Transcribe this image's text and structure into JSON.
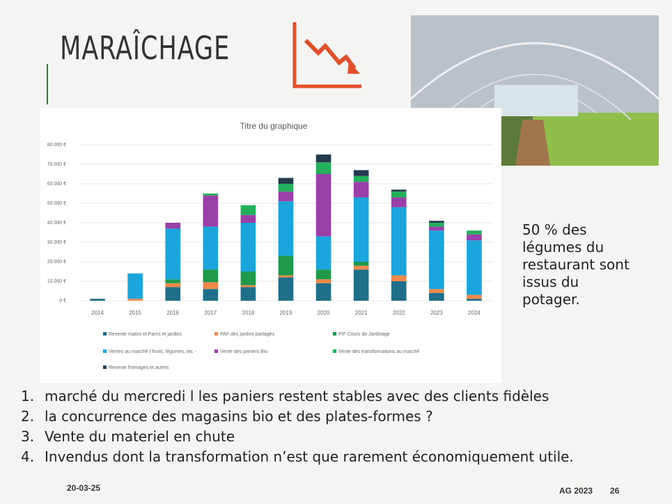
{
  "title": "MARAÎCHAGE",
  "side_note": "50 % des légumes du restaurant sont issus du potager.",
  "points": [
    {
      "number": "1.",
      "text": "marché du mercredi l les paniers restent stables avec des clients fidèles"
    },
    {
      "number": "2.",
      "text": "la concurrence des magasins bio et des plates-formes ?"
    },
    {
      "number": "3.",
      "text": "Vente du materiel en chute"
    },
    {
      "number": "4.",
      "text": "Invendus dont la transformation n’est que rarement économiquement utile."
    }
  ],
  "footer": {
    "date": "20-03-25",
    "event": "AG 2023",
    "page": "26"
  },
  "chart_data": {
    "type": "stacked-bar",
    "title": "Titre du graphique",
    "categories": [
      "2014",
      "2015",
      "2016",
      "2017",
      "2018",
      "2019",
      "2020",
      "2021",
      "2022",
      "2023",
      "2024"
    ],
    "ylim": [
      0,
      80000
    ],
    "yticks": [
      {
        "value": 0,
        "label": "0 €"
      },
      {
        "value": 10000,
        "label": "10.000 €"
      },
      {
        "value": 20000,
        "label": "20.000 €"
      },
      {
        "value": 30000,
        "label": "30.000 €"
      },
      {
        "value": 40000,
        "label": "40.000 €"
      },
      {
        "value": 50000,
        "label": "50.000 €"
      },
      {
        "value": 60000,
        "label": "60.000 €"
      },
      {
        "value": 70000,
        "label": "70.000 €"
      },
      {
        "value": 80000,
        "label": "80.000 €"
      }
    ],
    "grid": true,
    "series": [
      {
        "name": "Revente matos et Parcs et jardins",
        "color": "#1f6f8b",
        "values": [
          1000,
          0,
          7000,
          6000,
          7000,
          12000,
          9000,
          16000,
          10000,
          4000,
          1000
        ]
      },
      {
        "name": "PAF des jardins partagés",
        "color": "#f08a4b",
        "values": [
          0,
          1000,
          2000,
          3500,
          1000,
          1000,
          2000,
          2000,
          3000,
          2000,
          2000
        ]
      },
      {
        "name": "PIF Cours de Jardinage",
        "color": "#1f9a4c",
        "values": [
          0,
          0,
          2000,
          6500,
          7000,
          10000,
          5000,
          2000,
          0,
          0,
          0
        ]
      },
      {
        "name": "Ventes au marché ( fruits, légumes, etc -",
        "color": "#1aa6dc",
        "values": [
          0,
          13000,
          26000,
          22000,
          25000,
          28000,
          17000,
          33000,
          35000,
          30000,
          28000
        ]
      },
      {
        "name": "Vente des paniers Bio",
        "color": "#9b3fa8",
        "values": [
          0,
          0,
          3000,
          16000,
          4000,
          5000,
          32000,
          8000,
          5000,
          2000,
          3000
        ]
      },
      {
        "name": "Vente des transformations au marché",
        "color": "#23b05a",
        "values": [
          0,
          0,
          0,
          1000,
          5000,
          4000,
          6000,
          3000,
          3000,
          2000,
          2000
        ]
      },
      {
        "name": "Revente fromages et autres",
        "color": "#243a4f",
        "values": [
          0,
          0,
          0,
          0,
          0,
          3000,
          4000,
          3000,
          1000,
          1000,
          0
        ]
      }
    ]
  }
}
